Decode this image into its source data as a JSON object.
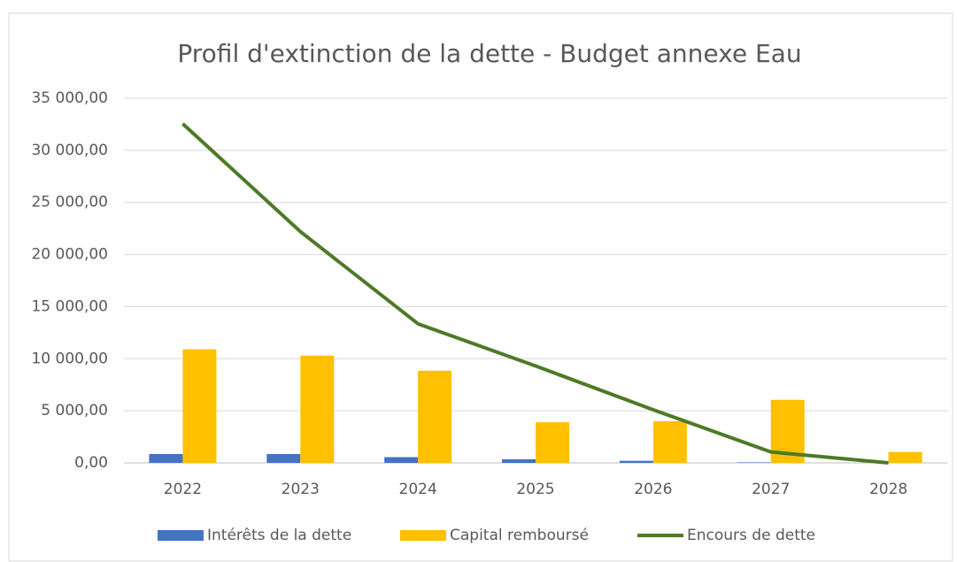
{
  "chart_data": {
    "type": "combo",
    "title": "Profil d'extinction de la dette - Budget annexe Eau",
    "categories": [
      "2022",
      "2023",
      "2024",
      "2025",
      "2026",
      "2027",
      "2028"
    ],
    "series": [
      {
        "name": "Intérêts de la dette",
        "type": "bar",
        "color": "#4472c4",
        "values": [
          850,
          850,
          550,
          350,
          200,
          50,
          0
        ]
      },
      {
        "name": "Capital remboursé",
        "type": "bar",
        "color": "#ffc000",
        "values": [
          10900,
          10300,
          8850,
          3900,
          4000,
          6050,
          1050
        ]
      },
      {
        "name": "Encours de dette",
        "type": "line",
        "color": "#4e7a27",
        "values": [
          32550,
          22200,
          13350,
          9300,
          5100,
          1050,
          0
        ]
      }
    ],
    "ylim": [
      0,
      35000
    ],
    "yticks": [
      {
        "value": 0,
        "label": "0,00"
      },
      {
        "value": 5000,
        "label": "5 000,00"
      },
      {
        "value": 10000,
        "label": "10 000,00"
      },
      {
        "value": 15000,
        "label": "15 000,00"
      },
      {
        "value": 20000,
        "label": "20 000,00"
      },
      {
        "value": 25000,
        "label": "25 000,00"
      },
      {
        "value": 30000,
        "label": "30 000,00"
      },
      {
        "value": 35000,
        "label": "35 000,00"
      }
    ],
    "grid": true,
    "legend": "bottom"
  }
}
